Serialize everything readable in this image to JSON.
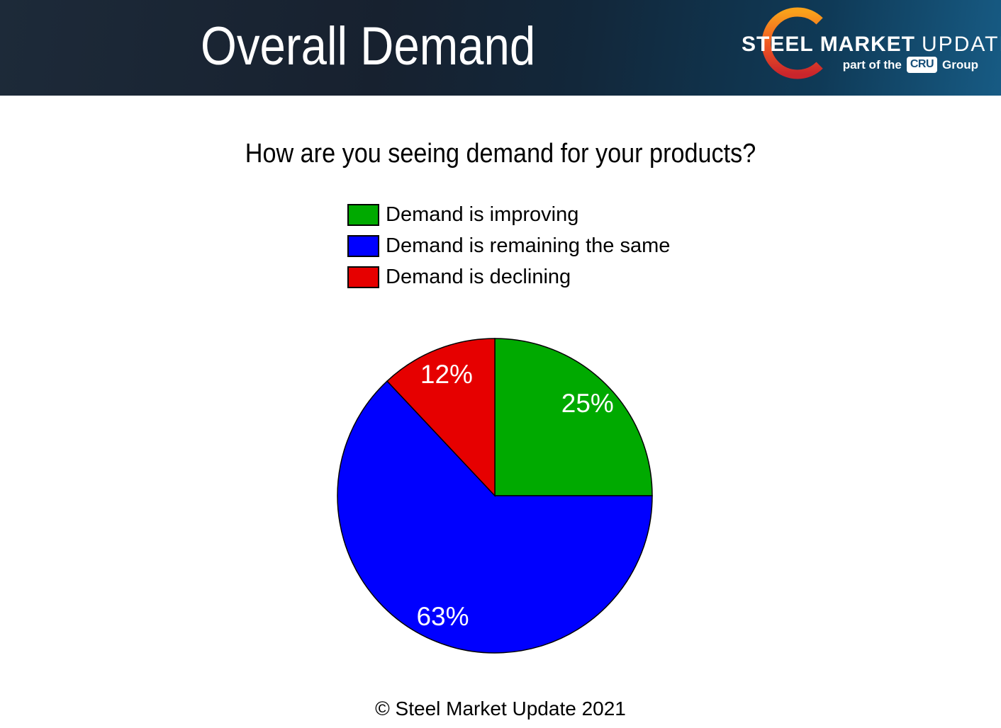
{
  "header": {
    "title": "Overall Demand",
    "brand": {
      "steel": "STEEL",
      "market": "MARKET",
      "update": "UPDATE",
      "tagline_prefix": "part of the",
      "badge": "CRU",
      "tagline_suffix": "Group"
    }
  },
  "question": "How are you seeing demand for your products?",
  "legend": {
    "items": [
      {
        "label": "Demand is improving",
        "color": "#00AA00"
      },
      {
        "label": "Demand is remaining the same",
        "color": "#0000FF"
      },
      {
        "label": "Demand is declining",
        "color": "#E60000"
      }
    ]
  },
  "chart_data": {
    "type": "pie",
    "title": "How are you seeing demand for your products?",
    "categories": [
      "Demand is improving",
      "Demand is remaining the same",
      "Demand is declining"
    ],
    "values": [
      25,
      63,
      12
    ],
    "labels": [
      "25%",
      "63%",
      "12%"
    ],
    "colors": [
      "#00AA00",
      "#0000FF",
      "#E60000"
    ],
    "start_angle": "top",
    "direction": "clockwise",
    "slice_border_color": "#000000",
    "label_color": "#FFFFFF",
    "legend_position": "above"
  },
  "footer": {
    "copyright": "© Steel Market Update 2021"
  },
  "colors": {
    "header_gradient_left": "#1C2939",
    "header_gradient_right": "#175B84",
    "background": "#FFFFFF",
    "title_text": "#FFFFFF",
    "body_text": "#000000",
    "crescent_top": "#F9A11B",
    "crescent_mid": "#F05A22",
    "crescent_bottom": "#C9252C",
    "cru_badge_text": "#174F79"
  }
}
